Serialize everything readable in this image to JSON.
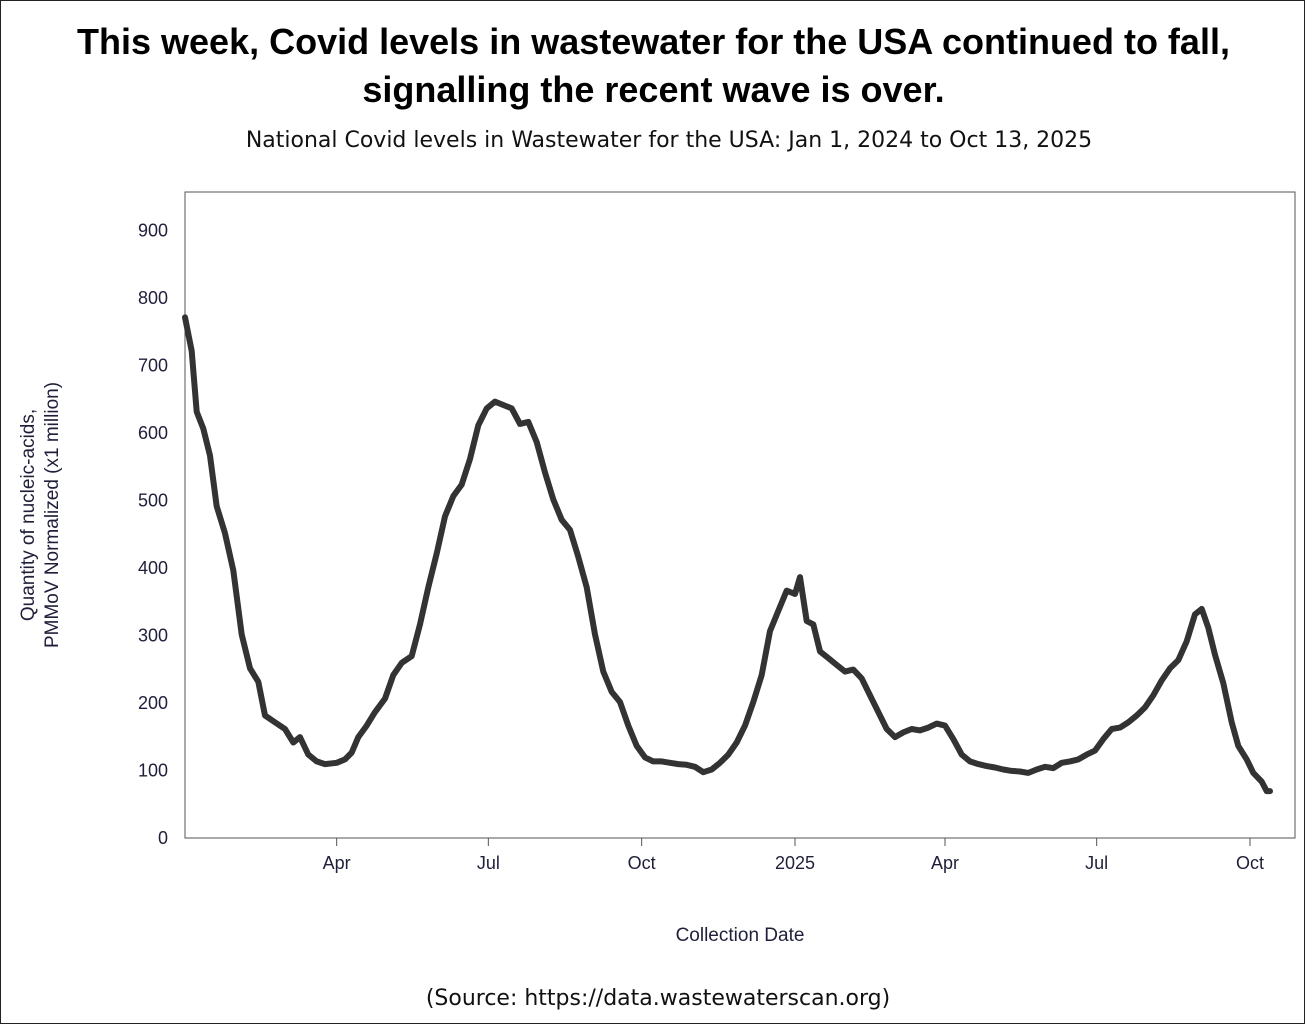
{
  "title_line1": "This week, Covid levels in wastewater for the USA continued to fall,",
  "title_line2": "signalling the recent wave is over.",
  "subtitle": "National Covid levels in Wastewater for the USA: Jan 1, 2024 to Oct 13, 2025",
  "source": "(Source: https://data.wastewaterscan.org)",
  "chart_data": {
    "type": "line",
    "xlabel": "Collection Date",
    "ylabel_line1": "Quantity of nucleic-acids,",
    "ylabel_line2": "PMMoV Normalized (x1 million)",
    "xlim": [
      "2024-01-01",
      "2025-10-13"
    ],
    "ylim": [
      0,
      950
    ],
    "yticks": [
      0,
      100,
      200,
      300,
      400,
      500,
      600,
      700,
      800,
      900
    ],
    "xticks": [
      {
        "date": "2024-04-01",
        "label": "Apr"
      },
      {
        "date": "2024-07-01",
        "label": "Jul"
      },
      {
        "date": "2024-10-01",
        "label": "Oct"
      },
      {
        "date": "2025-01-01",
        "label": "2025"
      },
      {
        "date": "2025-04-01",
        "label": "Apr"
      },
      {
        "date": "2025-07-01",
        "label": "Jul"
      },
      {
        "date": "2025-10-01",
        "label": "Oct"
      }
    ],
    "grid": false,
    "line_color": "#333333",
    "series": [
      {
        "points": [
          [
            "2024-01-01",
            770
          ],
          [
            "2024-01-05",
            720
          ],
          [
            "2024-01-08",
            630
          ],
          [
            "2024-01-12",
            605
          ],
          [
            "2024-01-16",
            565
          ],
          [
            "2024-01-20",
            490
          ],
          [
            "2024-01-25",
            450
          ],
          [
            "2024-01-30",
            395
          ],
          [
            "2024-02-04",
            300
          ],
          [
            "2024-02-09",
            250
          ],
          [
            "2024-02-14",
            230
          ],
          [
            "2024-02-18",
            180
          ],
          [
            "2024-02-24",
            170
          ],
          [
            "2024-03-01",
            160
          ],
          [
            "2024-03-06",
            140
          ],
          [
            "2024-03-10",
            148
          ],
          [
            "2024-03-15",
            122
          ],
          [
            "2024-03-20",
            112
          ],
          [
            "2024-03-25",
            108
          ],
          [
            "2024-04-01",
            110
          ],
          [
            "2024-04-06",
            115
          ],
          [
            "2024-04-10",
            125
          ],
          [
            "2024-04-14",
            148
          ],
          [
            "2024-04-19",
            165
          ],
          [
            "2024-04-24",
            185
          ],
          [
            "2024-04-30",
            205
          ],
          [
            "2024-05-05",
            240
          ],
          [
            "2024-05-10",
            258
          ],
          [
            "2024-05-16",
            268
          ],
          [
            "2024-05-21",
            315
          ],
          [
            "2024-05-26",
            370
          ],
          [
            "2024-05-31",
            420
          ],
          [
            "2024-06-05",
            475
          ],
          [
            "2024-06-10",
            505
          ],
          [
            "2024-06-15",
            522
          ],
          [
            "2024-06-20",
            560
          ],
          [
            "2024-06-25",
            610
          ],
          [
            "2024-06-30",
            635
          ],
          [
            "2024-07-05",
            645
          ],
          [
            "2024-07-10",
            640
          ],
          [
            "2024-07-15",
            635
          ],
          [
            "2024-07-20",
            612
          ],
          [
            "2024-07-25",
            615
          ],
          [
            "2024-07-30",
            585
          ],
          [
            "2024-08-04",
            540
          ],
          [
            "2024-08-09",
            500
          ],
          [
            "2024-08-14",
            470
          ],
          [
            "2024-08-19",
            455
          ],
          [
            "2024-08-24",
            415
          ],
          [
            "2024-08-29",
            370
          ],
          [
            "2024-09-03",
            300
          ],
          [
            "2024-09-08",
            245
          ],
          [
            "2024-09-13",
            215
          ],
          [
            "2024-09-18",
            200
          ],
          [
            "2024-09-23",
            165
          ],
          [
            "2024-09-28",
            135
          ],
          [
            "2024-10-03",
            118
          ],
          [
            "2024-10-08",
            112
          ],
          [
            "2024-10-13",
            112
          ],
          [
            "2024-10-18",
            110
          ],
          [
            "2024-10-23",
            108
          ],
          [
            "2024-10-28",
            107
          ],
          [
            "2024-11-02",
            104
          ],
          [
            "2024-11-07",
            96
          ],
          [
            "2024-11-12",
            100
          ],
          [
            "2024-11-17",
            110
          ],
          [
            "2024-11-22",
            122
          ],
          [
            "2024-11-27",
            140
          ],
          [
            "2024-12-02",
            165
          ],
          [
            "2024-12-07",
            200
          ],
          [
            "2024-12-12",
            240
          ],
          [
            "2024-12-17",
            305
          ],
          [
            "2024-12-22",
            335
          ],
          [
            "2024-12-27",
            365
          ],
          [
            "2025-01-01",
            360
          ],
          [
            "2025-01-04",
            385
          ],
          [
            "2025-01-08",
            320
          ],
          [
            "2025-01-12",
            315
          ],
          [
            "2025-01-16",
            275
          ],
          [
            "2025-01-21",
            265
          ],
          [
            "2025-01-26",
            255
          ],
          [
            "2025-01-31",
            245
          ],
          [
            "2025-02-05",
            248
          ],
          [
            "2025-02-10",
            235
          ],
          [
            "2025-02-15",
            210
          ],
          [
            "2025-02-20",
            185
          ],
          [
            "2025-02-25",
            160
          ],
          [
            "2025-03-02",
            148
          ],
          [
            "2025-03-07",
            155
          ],
          [
            "2025-03-12",
            160
          ],
          [
            "2025-03-17",
            158
          ],
          [
            "2025-03-22",
            162
          ],
          [
            "2025-03-27",
            168
          ],
          [
            "2025-04-01",
            165
          ],
          [
            "2025-04-06",
            145
          ],
          [
            "2025-04-11",
            122
          ],
          [
            "2025-04-16",
            112
          ],
          [
            "2025-04-21",
            108
          ],
          [
            "2025-04-26",
            105
          ],
          [
            "2025-05-01",
            103
          ],
          [
            "2025-05-06",
            100
          ],
          [
            "2025-05-11",
            98
          ],
          [
            "2025-05-16",
            97
          ],
          [
            "2025-05-21",
            95
          ],
          [
            "2025-05-26",
            100
          ],
          [
            "2025-05-31",
            104
          ],
          [
            "2025-06-05",
            102
          ],
          [
            "2025-06-10",
            110
          ],
          [
            "2025-06-15",
            112
          ],
          [
            "2025-06-20",
            115
          ],
          [
            "2025-06-25",
            122
          ],
          [
            "2025-06-30",
            128
          ],
          [
            "2025-07-05",
            145
          ],
          [
            "2025-07-10",
            160
          ],
          [
            "2025-07-15",
            162
          ],
          [
            "2025-07-20",
            170
          ],
          [
            "2025-07-25",
            180
          ],
          [
            "2025-07-30",
            192
          ],
          [
            "2025-08-04",
            210
          ],
          [
            "2025-08-09",
            232
          ],
          [
            "2025-08-14",
            250
          ],
          [
            "2025-08-19",
            262
          ],
          [
            "2025-08-24",
            290
          ],
          [
            "2025-08-29",
            330
          ],
          [
            "2025-09-02",
            338
          ],
          [
            "2025-09-06",
            310
          ],
          [
            "2025-09-10",
            270
          ],
          [
            "2025-09-15",
            228
          ],
          [
            "2025-09-20",
            170
          ],
          [
            "2025-09-24",
            135
          ],
          [
            "2025-09-29",
            115
          ],
          [
            "2025-10-03",
            95
          ],
          [
            "2025-10-08",
            82
          ],
          [
            "2025-10-11",
            68
          ],
          [
            "2025-10-13",
            68
          ]
        ]
      }
    ]
  }
}
